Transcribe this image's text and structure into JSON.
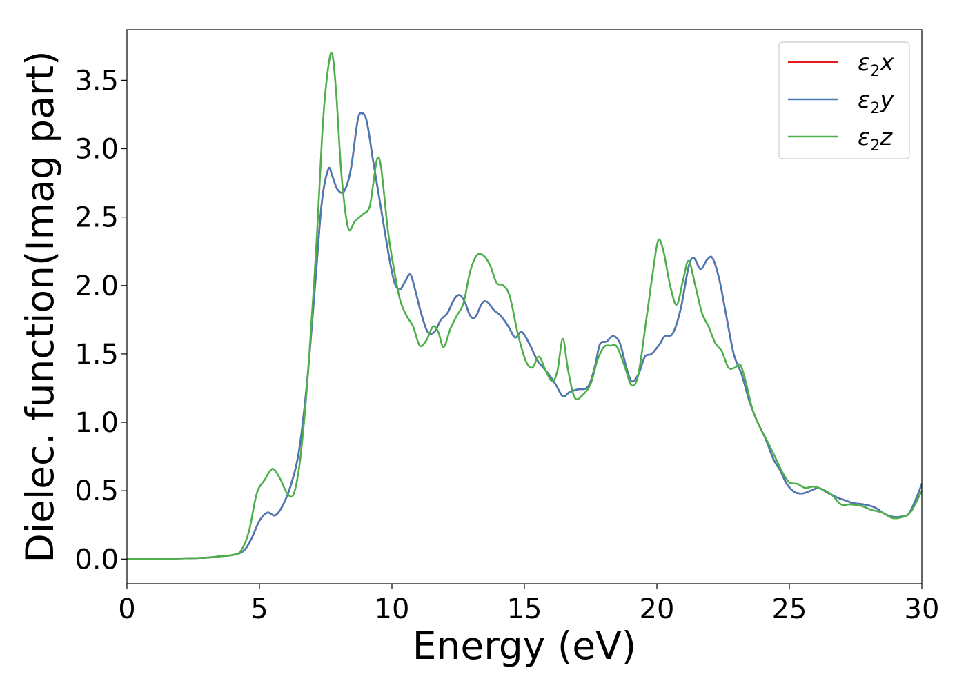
{
  "chart_data": {
    "type": "line",
    "title": "",
    "xlabel": "Energy (eV)",
    "ylabel": "Dielec. function(Imag part)",
    "xlim": [
      0,
      30
    ],
    "ylim": [
      -0.18,
      3.87
    ],
    "x_ticks": [
      "0",
      "5",
      "10",
      "15",
      "20",
      "25",
      "30"
    ],
    "y_ticks": [
      "0.0",
      "0.5",
      "1.0",
      "1.5",
      "2.0",
      "2.5",
      "3.0",
      "3.5"
    ],
    "grid": false,
    "legend_position": "top-right",
    "series": [
      {
        "name": "ε2x",
        "legend_base": "ε",
        "legend_sub": "2",
        "legend_tail": "x",
        "color": "#e41a1c",
        "points": [
          [
            0,
            0.0
          ],
          [
            2,
            0.005
          ],
          [
            3,
            0.01
          ],
          [
            3.5,
            0.02
          ],
          [
            4,
            0.03
          ],
          [
            4.4,
            0.06
          ],
          [
            4.7,
            0.15
          ],
          [
            5.0,
            0.28
          ],
          [
            5.3,
            0.34
          ],
          [
            5.6,
            0.32
          ],
          [
            5.9,
            0.4
          ],
          [
            6.2,
            0.55
          ],
          [
            6.5,
            0.8
          ],
          [
            6.8,
            1.3
          ],
          [
            7.1,
            2.0
          ],
          [
            7.35,
            2.6
          ],
          [
            7.6,
            2.85
          ],
          [
            7.75,
            2.8
          ],
          [
            7.95,
            2.7
          ],
          [
            8.2,
            2.69
          ],
          [
            8.45,
            2.85
          ],
          [
            8.7,
            3.2
          ],
          [
            8.85,
            3.26
          ],
          [
            9.05,
            3.2
          ],
          [
            9.3,
            2.9
          ],
          [
            9.6,
            2.55
          ],
          [
            9.9,
            2.2
          ],
          [
            10.1,
            2.02
          ],
          [
            10.3,
            1.97
          ],
          [
            10.5,
            2.03
          ],
          [
            10.7,
            2.08
          ],
          [
            10.9,
            1.95
          ],
          [
            11.1,
            1.8
          ],
          [
            11.35,
            1.66
          ],
          [
            11.6,
            1.66
          ],
          [
            11.85,
            1.75
          ],
          [
            12.1,
            1.8
          ],
          [
            12.35,
            1.9
          ],
          [
            12.55,
            1.93
          ],
          [
            12.75,
            1.88
          ],
          [
            12.95,
            1.78
          ],
          [
            13.15,
            1.77
          ],
          [
            13.4,
            1.87
          ],
          [
            13.6,
            1.88
          ],
          [
            13.85,
            1.82
          ],
          [
            14.1,
            1.78
          ],
          [
            14.4,
            1.7
          ],
          [
            14.65,
            1.62
          ],
          [
            14.9,
            1.66
          ],
          [
            15.2,
            1.57
          ],
          [
            15.5,
            1.45
          ],
          [
            15.8,
            1.38
          ],
          [
            16.0,
            1.33
          ],
          [
            16.2,
            1.27
          ],
          [
            16.45,
            1.19
          ],
          [
            16.7,
            1.22
          ],
          [
            17.0,
            1.24
          ],
          [
            17.4,
            1.26
          ],
          [
            17.65,
            1.4
          ],
          [
            17.85,
            1.57
          ],
          [
            18.1,
            1.59
          ],
          [
            18.35,
            1.63
          ],
          [
            18.6,
            1.58
          ],
          [
            18.85,
            1.4
          ],
          [
            19.05,
            1.3
          ],
          [
            19.3,
            1.35
          ],
          [
            19.55,
            1.48
          ],
          [
            19.8,
            1.5
          ],
          [
            20.1,
            1.57
          ],
          [
            20.3,
            1.63
          ],
          [
            20.6,
            1.65
          ],
          [
            20.9,
            1.83
          ],
          [
            21.2,
            2.14
          ],
          [
            21.4,
            2.2
          ],
          [
            21.65,
            2.12
          ],
          [
            21.9,
            2.19
          ],
          [
            22.1,
            2.2
          ],
          [
            22.35,
            2.05
          ],
          [
            22.6,
            1.8
          ],
          [
            22.9,
            1.5
          ],
          [
            23.2,
            1.35
          ],
          [
            23.5,
            1.15
          ],
          [
            23.8,
            1.0
          ],
          [
            24.1,
            0.88
          ],
          [
            24.4,
            0.73
          ],
          [
            24.65,
            0.65
          ],
          [
            24.9,
            0.55
          ],
          [
            25.2,
            0.49
          ],
          [
            25.5,
            0.48
          ],
          [
            25.8,
            0.5
          ],
          [
            26.1,
            0.52
          ],
          [
            26.4,
            0.49
          ],
          [
            26.8,
            0.45
          ],
          [
            27.1,
            0.43
          ],
          [
            27.4,
            0.41
          ],
          [
            27.8,
            0.4
          ],
          [
            28.2,
            0.38
          ],
          [
            28.6,
            0.33
          ],
          [
            28.9,
            0.31
          ],
          [
            29.2,
            0.31
          ],
          [
            29.5,
            0.33
          ],
          [
            29.8,
            0.45
          ],
          [
            30,
            0.55
          ]
        ]
      },
      {
        "name": "ε2y",
        "legend_base": "ε",
        "legend_sub": "2",
        "legend_tail": "y",
        "color": "#4a7ab5",
        "points": [
          [
            0,
            0.0
          ],
          [
            2,
            0.005
          ],
          [
            3,
            0.01
          ],
          [
            3.5,
            0.02
          ],
          [
            4,
            0.03
          ],
          [
            4.4,
            0.06
          ],
          [
            4.7,
            0.15
          ],
          [
            5.0,
            0.28
          ],
          [
            5.3,
            0.34
          ],
          [
            5.6,
            0.32
          ],
          [
            5.9,
            0.4
          ],
          [
            6.2,
            0.55
          ],
          [
            6.5,
            0.8
          ],
          [
            6.8,
            1.3
          ],
          [
            7.1,
            2.0
          ],
          [
            7.35,
            2.6
          ],
          [
            7.6,
            2.85
          ],
          [
            7.75,
            2.8
          ],
          [
            7.95,
            2.7
          ],
          [
            8.2,
            2.69
          ],
          [
            8.45,
            2.85
          ],
          [
            8.7,
            3.2
          ],
          [
            8.85,
            3.26
          ],
          [
            9.05,
            3.2
          ],
          [
            9.3,
            2.9
          ],
          [
            9.6,
            2.55
          ],
          [
            9.9,
            2.2
          ],
          [
            10.1,
            2.02
          ],
          [
            10.3,
            1.97
          ],
          [
            10.5,
            2.03
          ],
          [
            10.7,
            2.08
          ],
          [
            10.9,
            1.95
          ],
          [
            11.1,
            1.8
          ],
          [
            11.35,
            1.66
          ],
          [
            11.6,
            1.66
          ],
          [
            11.85,
            1.75
          ],
          [
            12.1,
            1.8
          ],
          [
            12.35,
            1.9
          ],
          [
            12.55,
            1.93
          ],
          [
            12.75,
            1.88
          ],
          [
            12.95,
            1.78
          ],
          [
            13.15,
            1.77
          ],
          [
            13.4,
            1.87
          ],
          [
            13.6,
            1.88
          ],
          [
            13.85,
            1.82
          ],
          [
            14.1,
            1.78
          ],
          [
            14.4,
            1.7
          ],
          [
            14.65,
            1.62
          ],
          [
            14.9,
            1.66
          ],
          [
            15.2,
            1.57
          ],
          [
            15.5,
            1.45
          ],
          [
            15.8,
            1.38
          ],
          [
            16.0,
            1.33
          ],
          [
            16.2,
            1.27
          ],
          [
            16.45,
            1.19
          ],
          [
            16.7,
            1.22
          ],
          [
            17.0,
            1.24
          ],
          [
            17.4,
            1.26
          ],
          [
            17.65,
            1.4
          ],
          [
            17.85,
            1.57
          ],
          [
            18.1,
            1.59
          ],
          [
            18.35,
            1.63
          ],
          [
            18.6,
            1.58
          ],
          [
            18.85,
            1.4
          ],
          [
            19.05,
            1.3
          ],
          [
            19.3,
            1.35
          ],
          [
            19.55,
            1.48
          ],
          [
            19.8,
            1.5
          ],
          [
            20.1,
            1.57
          ],
          [
            20.3,
            1.63
          ],
          [
            20.6,
            1.65
          ],
          [
            20.9,
            1.83
          ],
          [
            21.2,
            2.14
          ],
          [
            21.4,
            2.2
          ],
          [
            21.65,
            2.12
          ],
          [
            21.9,
            2.19
          ],
          [
            22.1,
            2.2
          ],
          [
            22.35,
            2.05
          ],
          [
            22.6,
            1.8
          ],
          [
            22.9,
            1.5
          ],
          [
            23.2,
            1.35
          ],
          [
            23.5,
            1.15
          ],
          [
            23.8,
            1.0
          ],
          [
            24.1,
            0.88
          ],
          [
            24.4,
            0.73
          ],
          [
            24.65,
            0.65
          ],
          [
            24.9,
            0.55
          ],
          [
            25.2,
            0.49
          ],
          [
            25.5,
            0.48
          ],
          [
            25.8,
            0.5
          ],
          [
            26.1,
            0.52
          ],
          [
            26.4,
            0.49
          ],
          [
            26.8,
            0.45
          ],
          [
            27.1,
            0.43
          ],
          [
            27.4,
            0.41
          ],
          [
            27.8,
            0.4
          ],
          [
            28.2,
            0.38
          ],
          [
            28.6,
            0.33
          ],
          [
            28.9,
            0.31
          ],
          [
            29.2,
            0.31
          ],
          [
            29.5,
            0.33
          ],
          [
            29.8,
            0.45
          ],
          [
            30,
            0.55
          ]
        ]
      },
      {
        "name": "ε2z",
        "legend_base": "ε",
        "legend_sub": "2",
        "legend_tail": "z",
        "color": "#4daf4a",
        "points": [
          [
            0,
            0.0
          ],
          [
            2,
            0.005
          ],
          [
            3,
            0.01
          ],
          [
            3.5,
            0.02
          ],
          [
            4,
            0.03
          ],
          [
            4.3,
            0.06
          ],
          [
            4.6,
            0.2
          ],
          [
            4.9,
            0.48
          ],
          [
            5.2,
            0.58
          ],
          [
            5.5,
            0.66
          ],
          [
            5.8,
            0.58
          ],
          [
            6.05,
            0.48
          ],
          [
            6.3,
            0.48
          ],
          [
            6.55,
            0.75
          ],
          [
            6.85,
            1.4
          ],
          [
            7.15,
            2.3
          ],
          [
            7.4,
            3.2
          ],
          [
            7.6,
            3.6
          ],
          [
            7.75,
            3.69
          ],
          [
            7.9,
            3.4
          ],
          [
            8.1,
            2.8
          ],
          [
            8.35,
            2.42
          ],
          [
            8.6,
            2.47
          ],
          [
            8.9,
            2.52
          ],
          [
            9.15,
            2.57
          ],
          [
            9.3,
            2.75
          ],
          [
            9.45,
            2.93
          ],
          [
            9.6,
            2.85
          ],
          [
            9.85,
            2.4
          ],
          [
            10.05,
            2.15
          ],
          [
            10.3,
            1.9
          ],
          [
            10.55,
            1.78
          ],
          [
            10.8,
            1.7
          ],
          [
            11.05,
            1.56
          ],
          [
            11.3,
            1.6
          ],
          [
            11.55,
            1.7
          ],
          [
            11.75,
            1.66
          ],
          [
            11.95,
            1.55
          ],
          [
            12.2,
            1.68
          ],
          [
            12.45,
            1.78
          ],
          [
            12.7,
            1.87
          ],
          [
            12.95,
            2.1
          ],
          [
            13.2,
            2.22
          ],
          [
            13.45,
            2.22
          ],
          [
            13.7,
            2.15
          ],
          [
            13.95,
            2.02
          ],
          [
            14.2,
            2.0
          ],
          [
            14.45,
            1.92
          ],
          [
            14.75,
            1.65
          ],
          [
            15.05,
            1.45
          ],
          [
            15.3,
            1.4
          ],
          [
            15.55,
            1.48
          ],
          [
            15.8,
            1.38
          ],
          [
            16.05,
            1.3
          ],
          [
            16.25,
            1.38
          ],
          [
            16.45,
            1.61
          ],
          [
            16.65,
            1.38
          ],
          [
            16.9,
            1.18
          ],
          [
            17.2,
            1.2
          ],
          [
            17.5,
            1.28
          ],
          [
            17.75,
            1.45
          ],
          [
            18.0,
            1.55
          ],
          [
            18.25,
            1.56
          ],
          [
            18.5,
            1.55
          ],
          [
            18.8,
            1.4
          ],
          [
            19.05,
            1.27
          ],
          [
            19.3,
            1.35
          ],
          [
            19.6,
            1.75
          ],
          [
            19.85,
            2.1
          ],
          [
            20.05,
            2.33
          ],
          [
            20.25,
            2.25
          ],
          [
            20.5,
            2.0
          ],
          [
            20.75,
            1.86
          ],
          [
            21.0,
            2.05
          ],
          [
            21.2,
            2.18
          ],
          [
            21.45,
            2.0
          ],
          [
            21.7,
            1.8
          ],
          [
            21.95,
            1.7
          ],
          [
            22.2,
            1.58
          ],
          [
            22.45,
            1.52
          ],
          [
            22.7,
            1.4
          ],
          [
            22.95,
            1.4
          ],
          [
            23.15,
            1.42
          ],
          [
            23.35,
            1.3
          ],
          [
            23.6,
            1.1
          ],
          [
            23.9,
            0.96
          ],
          [
            24.2,
            0.85
          ],
          [
            24.5,
            0.73
          ],
          [
            24.75,
            0.63
          ],
          [
            25.0,
            0.56
          ],
          [
            25.3,
            0.55
          ],
          [
            25.6,
            0.52
          ],
          [
            25.9,
            0.53
          ],
          [
            26.25,
            0.51
          ],
          [
            26.6,
            0.47
          ],
          [
            26.95,
            0.4
          ],
          [
            27.3,
            0.4
          ],
          [
            27.7,
            0.39
          ],
          [
            28.1,
            0.36
          ],
          [
            28.5,
            0.34
          ],
          [
            28.9,
            0.3
          ],
          [
            29.3,
            0.31
          ],
          [
            29.6,
            0.35
          ],
          [
            30,
            0.5
          ]
        ]
      }
    ]
  }
}
